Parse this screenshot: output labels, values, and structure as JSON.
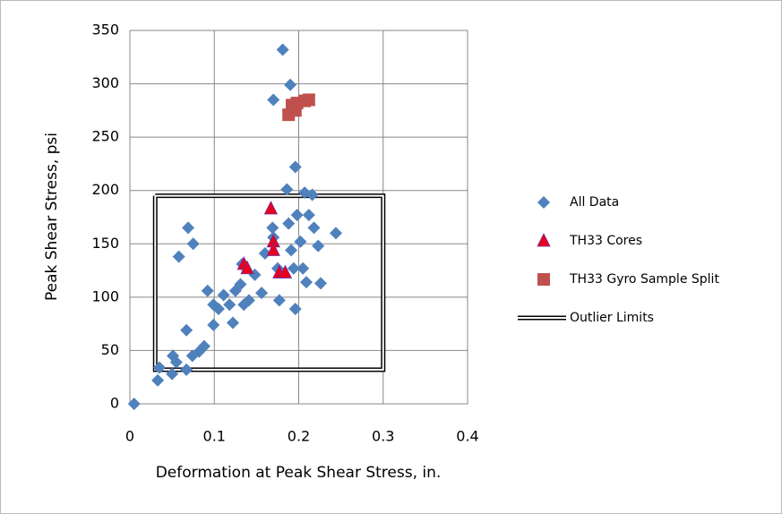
{
  "chart_data": {
    "type": "scatter",
    "x_label": "Deformation at Peak Shear Stress, in.",
    "y_label": "Peak Shear Stress, psi",
    "xlim": [
      0,
      0.4
    ],
    "xticks": [
      0,
      0.1,
      0.2,
      0.3,
      0.4
    ],
    "ylim": [
      0,
      350
    ],
    "yticks": [
      0,
      50,
      100,
      150,
      200,
      250,
      300,
      350
    ],
    "grid": true,
    "legend": "right",
    "series": [
      {
        "name": "All Data",
        "color": "#4f81bd",
        "marker": "diamond",
        "x": [
          0.005,
          0.033,
          0.035,
          0.05,
          0.051,
          0.055,
          0.067,
          0.058,
          0.069,
          0.075,
          0.067,
          0.074,
          0.082,
          0.088,
          0.092,
          0.099,
          0.099,
          0.105,
          0.111,
          0.118,
          0.122,
          0.125,
          0.131,
          0.135,
          0.133,
          0.141,
          0.148,
          0.156,
          0.16,
          0.169,
          0.17,
          0.17,
          0.175,
          0.177,
          0.181,
          0.186,
          0.19,
          0.188,
          0.191,
          0.194,
          0.196,
          0.196,
          0.198,
          0.202,
          0.205,
          0.207,
          0.209,
          0.212,
          0.216,
          0.218,
          0.223,
          0.226,
          0.244
        ],
        "y": [
          0,
          22,
          34,
          28,
          45,
          39,
          32,
          138,
          165,
          150,
          69,
          45,
          49,
          54,
          106,
          93,
          74,
          89,
          102,
          93,
          76,
          106,
          112,
          93,
          131,
          97,
          121,
          104,
          141,
          165,
          285,
          156,
          127,
          97,
          332,
          201,
          299,
          169,
          144,
          127,
          222,
          89,
          177,
          152,
          127,
          198,
          114,
          177,
          196,
          165,
          148,
          113,
          160
        ]
      },
      {
        "name": "TH33 Cores",
        "color": "#e8001c",
        "marker": "triangle",
        "x": [
          0.135,
          0.139,
          0.167,
          0.17,
          0.17,
          0.177,
          0.184
        ],
        "y": [
          131,
          127,
          183,
          152,
          144,
          123,
          123
        ]
      },
      {
        "name": "TH33 Gyro Sample Split",
        "color": "#c0504d",
        "marker": "square",
        "x": [
          0.188,
          0.192,
          0.196,
          0.198,
          0.207,
          0.212
        ],
        "y": [
          271,
          280,
          275,
          282,
          284,
          285
        ]
      },
      {
        "name": "Outlier Limits",
        "color": "#000000",
        "marker": "doubleline",
        "x": [
          0.03,
          0.3,
          0.3,
          0.03,
          0.03
        ],
        "y": [
          195,
          195,
          32,
          32,
          195
        ]
      }
    ]
  }
}
